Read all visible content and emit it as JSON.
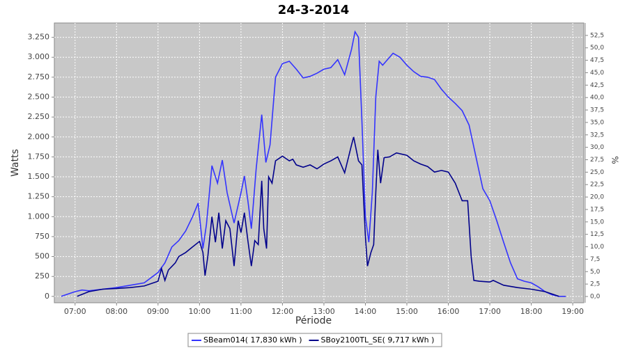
{
  "chart_data": {
    "type": "line",
    "title": "24-3-2014",
    "xlabel": "Période",
    "ylabel": "Watts",
    "y2label": "%",
    "xlim": [
      "06:30",
      "19:16"
    ],
    "xticks": [
      "07:00",
      "08:00",
      "09:00",
      "10:00",
      "11:00",
      "12:00",
      "13:00",
      "14:00",
      "15:00",
      "16:00",
      "17:00",
      "18:00",
      "19:00"
    ],
    "ylim": [
      -80,
      3430
    ],
    "yticks": [
      0,
      250,
      500,
      750,
      {
        "value": 1000,
        "label": "1.000"
      },
      {
        "value": 1250,
        "label": "1.250"
      },
      {
        "value": 1500,
        "label": "1.500"
      },
      {
        "value": 1750,
        "label": "1.750"
      },
      {
        "value": 2000,
        "label": "2.000"
      },
      {
        "value": 2250,
        "label": "2.250"
      },
      {
        "value": 2500,
        "label": "2.500"
      },
      {
        "value": 2750,
        "label": "2.750"
      },
      {
        "value": 3000,
        "label": "3.000"
      },
      {
        "value": 3250,
        "label": "3.250"
      }
    ],
    "y2lim": [
      -1.26,
      55.0
    ],
    "y2ticks": [
      {
        "value": 0,
        "label": "0,0"
      },
      {
        "value": 2.5,
        "label": "2,5"
      },
      {
        "value": 5,
        "label": "5,0"
      },
      {
        "value": 7.5,
        "label": "7,5"
      },
      {
        "value": 10,
        "label": "10,0"
      },
      {
        "value": 12.5,
        "label": "12,5"
      },
      {
        "value": 15,
        "label": "15,0"
      },
      {
        "value": 17.5,
        "label": "17,5"
      },
      {
        "value": 20,
        "label": "20,0"
      },
      {
        "value": 22.5,
        "label": "22,5"
      },
      {
        "value": 25,
        "label": "25,0"
      },
      {
        "value": 27.5,
        "label": "27,5"
      },
      {
        "value": 30,
        "label": "30,0"
      },
      {
        "value": 32.5,
        "label": "32,5"
      },
      {
        "value": 35,
        "label": "35,0"
      },
      {
        "value": 37.5,
        "label": "37,5"
      },
      {
        "value": 40,
        "label": "40,0"
      },
      {
        "value": 42.5,
        "label": "42,5"
      },
      {
        "value": 45,
        "label": "45,0"
      },
      {
        "value": 47.5,
        "label": "47,5"
      },
      {
        "value": 50,
        "label": "50,0"
      },
      {
        "value": 52.5,
        "label": "52,5"
      }
    ],
    "grid": true,
    "legend": "bottom",
    "series": [
      {
        "name": "SBeam014( 17,830 kWh )",
        "color": "#3333ff",
        "x": [
          "06:40",
          "07:00",
          "07:10",
          "07:20",
          "07:40",
          "08:00",
          "08:20",
          "08:40",
          "09:00",
          "09:10",
          "09:20",
          "09:30",
          "09:40",
          "09:50",
          "09:58",
          "10:05",
          "10:10",
          "10:18",
          "10:26",
          "10:33",
          "10:40",
          "10:50",
          "11:00",
          "11:05",
          "11:10",
          "11:15",
          "11:22",
          "11:30",
          "11:36",
          "11:42",
          "11:50",
          "12:00",
          "12:10",
          "12:20",
          "12:30",
          "12:40",
          "12:50",
          "13:00",
          "13:10",
          "13:20",
          "13:30",
          "13:40",
          "13:45",
          "13:50",
          "13:55",
          "14:00",
          "14:05",
          "14:10",
          "14:15",
          "14:20",
          "14:25",
          "14:30",
          "14:40",
          "14:50",
          "15:00",
          "15:10",
          "15:20",
          "15:30",
          "15:40",
          "15:50",
          "16:00",
          "16:10",
          "16:20",
          "16:30",
          "16:40",
          "16:50",
          "17:00",
          "17:10",
          "17:20",
          "17:30",
          "17:40",
          "17:50",
          "18:00",
          "18:10",
          "18:20",
          "18:30",
          "18:40",
          "18:50"
        ],
        "values": [
          0,
          60,
          80,
          70,
          90,
          110,
          140,
          170,
          300,
          420,
          620,
          700,
          820,
          1000,
          1170,
          600,
          900,
          1640,
          1420,
          1710,
          1300,
          920,
          1300,
          1510,
          1200,
          850,
          1600,
          2280,
          1680,
          1900,
          2750,
          2920,
          2950,
          2850,
          2740,
          2760,
          2800,
          2850,
          2870,
          2970,
          2780,
          3100,
          3320,
          3250,
          2200,
          1000,
          680,
          1300,
          2500,
          2950,
          2900,
          2950,
          3050,
          3000,
          2900,
          2820,
          2760,
          2750,
          2720,
          2600,
          2500,
          2420,
          2330,
          2150,
          1750,
          1350,
          1200,
          950,
          680,
          420,
          220,
          190,
          170,
          120,
          60,
          20,
          0,
          0
        ]
      },
      {
        "name": "SBoy2100TL_SE( 9,717 kWh )",
        "color": "#00008b",
        "x": [
          "07:03",
          "07:20",
          "07:40",
          "08:00",
          "08:20",
          "08:40",
          "09:00",
          "09:05",
          "09:10",
          "09:15",
          "09:25",
          "09:30",
          "09:40",
          "09:50",
          "10:00",
          "10:05",
          "10:08",
          "10:12",
          "10:18",
          "10:23",
          "10:28",
          "10:33",
          "10:38",
          "10:44",
          "10:50",
          "10:56",
          "11:00",
          "11:05",
          "11:10",
          "11:15",
          "11:20",
          "11:25",
          "11:30",
          "11:33",
          "11:37",
          "11:40",
          "11:45",
          "11:50",
          "12:00",
          "12:10",
          "12:15",
          "12:20",
          "12:30",
          "12:40",
          "12:50",
          "13:00",
          "13:10",
          "13:20",
          "13:30",
          "13:40",
          "13:43",
          "13:50",
          "13:55",
          "14:00",
          "14:03",
          "14:08",
          "14:12",
          "14:15",
          "14:18",
          "14:22",
          "14:27",
          "14:35",
          "14:45",
          "15:00",
          "15:10",
          "15:20",
          "15:30",
          "15:40",
          "15:50",
          "16:00",
          "16:10",
          "16:20",
          "16:28",
          "16:33",
          "16:37",
          "16:45",
          "17:00",
          "17:05",
          "17:20",
          "17:40",
          "18:00",
          "18:20",
          "18:30",
          "18:40"
        ],
        "values": [
          0,
          60,
          90,
          100,
          110,
          130,
          190,
          350,
          200,
          330,
          420,
          500,
          550,
          620,
          690,
          550,
          260,
          500,
          1000,
          680,
          1050,
          600,
          950,
          850,
          380,
          950,
          800,
          1050,
          700,
          380,
          700,
          650,
          1450,
          850,
          600,
          1500,
          1420,
          1700,
          1760,
          1700,
          1720,
          1650,
          1620,
          1650,
          1600,
          1660,
          1700,
          1750,
          1550,
          1900,
          2000,
          1700,
          1650,
          750,
          380,
          550,
          650,
          1300,
          1840,
          1420,
          1740,
          1750,
          1800,
          1770,
          1700,
          1660,
          1630,
          1560,
          1580,
          1560,
          1420,
          1200,
          1200,
          500,
          200,
          190,
          180,
          200,
          140,
          110,
          90,
          60,
          30,
          0
        ]
      }
    ]
  }
}
